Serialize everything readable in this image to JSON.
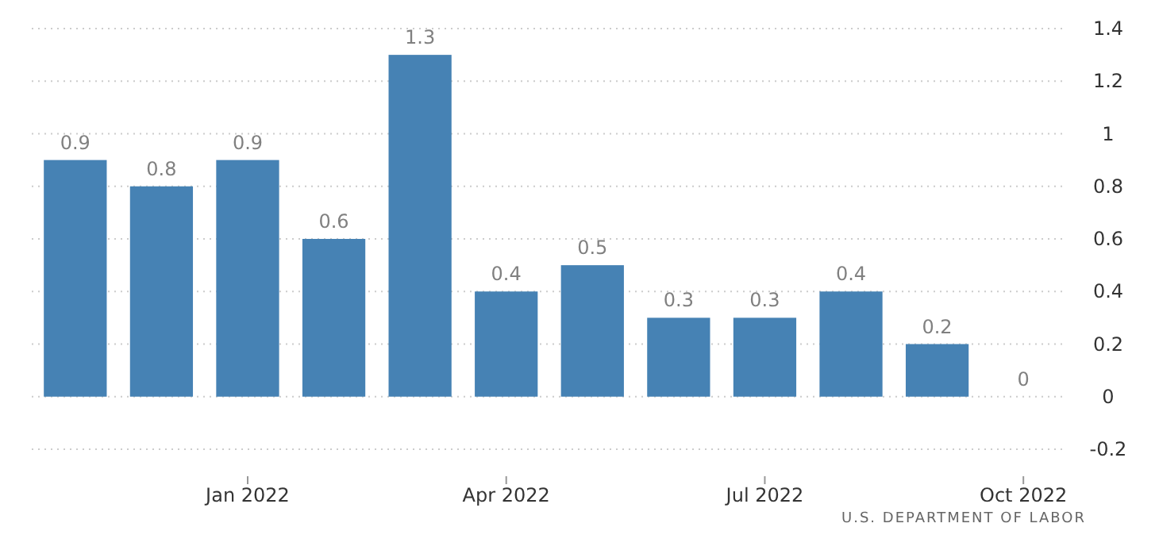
{
  "chart_data": {
    "type": "bar",
    "categories": [
      null,
      null,
      "Jan 2022",
      null,
      null,
      "Apr 2022",
      null,
      null,
      "Jul 2022",
      null,
      null,
      "Oct 2022"
    ],
    "values": [
      0.9,
      0.8,
      0.9,
      0.6,
      1.3,
      0.4,
      0.5,
      0.3,
      0.3,
      0.4,
      0.2,
      0
    ],
    "color": "#4682b4",
    "ylim": [
      -0.2,
      1.4
    ],
    "yticks": [
      -0.2,
      0,
      0.2,
      0.4,
      0.6,
      0.8,
      1,
      1.2,
      1.4
    ],
    "grid": "y",
    "data_labels": true,
    "annotations": [
      "U.S. DEPARTMENT OF LABOR"
    ]
  }
}
